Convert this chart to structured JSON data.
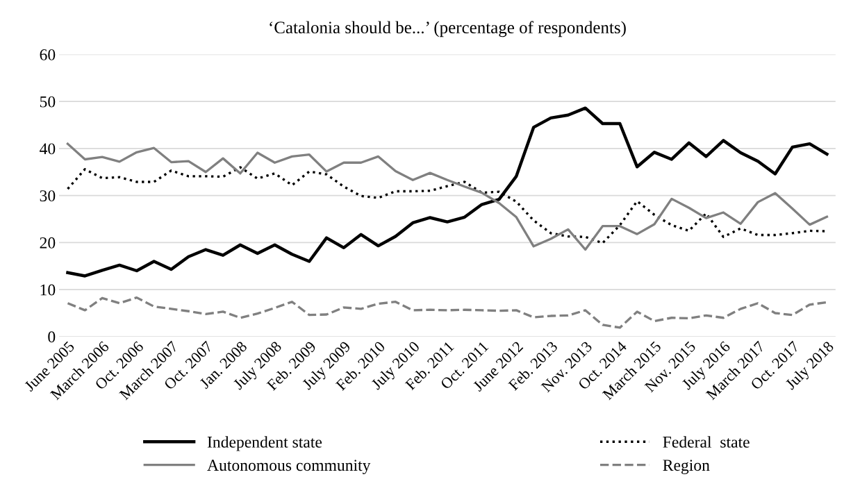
{
  "chart_data": {
    "type": "line",
    "title": "‘Catalonia should be...’ (percentage of respondents)",
    "categories": [
      "June 2005",
      null,
      "March 2006",
      null,
      "Oct. 2006",
      null,
      "March 2007",
      null,
      "Oct. 2007",
      null,
      "Jan. 2008",
      null,
      "July 2008",
      null,
      "Feb. 2009",
      null,
      "July 2009",
      null,
      "Feb. 2010",
      null,
      "July 2010",
      null,
      "Feb. 2011",
      null,
      "Oct. 2011",
      null,
      "June 2012",
      null,
      "Feb. 2013",
      null,
      "Nov. 2013",
      null,
      "Oct. 2014",
      null,
      "March 2015",
      null,
      "Nov. 2015",
      null,
      "July 2016",
      null,
      "March 2017",
      null,
      "Oct. 2017",
      null,
      "July 2018"
    ],
    "series": [
      {
        "name": "Independent state",
        "color": "#000000",
        "line_style": "solid",
        "values": [
          13.6,
          12.9,
          14.1,
          15.2,
          14.0,
          16.0,
          14.3,
          17.0,
          18.5,
          17.3,
          19.5,
          17.7,
          19.5,
          17.5,
          16.0,
          21.0,
          18.9,
          21.7,
          19.3,
          21.3,
          24.2,
          25.3,
          24.4,
          25.4,
          28.1,
          29.2,
          34.1,
          44.5,
          46.5,
          47.1,
          48.6,
          45.3,
          45.3,
          36.1,
          39.2,
          37.7,
          41.2,
          38.3,
          41.7,
          39.1,
          37.3,
          34.6,
          40.3,
          41.0,
          38.8
        ]
      },
      {
        "name": "Federal  state",
        "color": "#000000",
        "line_style": "dotted",
        "values": [
          31.4,
          35.6,
          33.7,
          33.9,
          32.9,
          32.9,
          35.3,
          34.1,
          34.1,
          34.0,
          36.0,
          33.6,
          34.7,
          32.2,
          35.1,
          34.5,
          31.9,
          29.9,
          29.5,
          30.9,
          30.9,
          31.0,
          32.0,
          32.9,
          30.6,
          30.8,
          28.7,
          24.7,
          22.0,
          21.3,
          21.2,
          19.9,
          23.7,
          28.8,
          25.9,
          23.7,
          22.5,
          26.2,
          21.2,
          23.0,
          21.6,
          21.6,
          22.0,
          22.5,
          22.4
        ]
      },
      {
        "name": "Autonomous community",
        "color": "#808080",
        "line_style": "solid",
        "values": [
          41.0,
          37.7,
          38.2,
          37.2,
          39.2,
          40.1,
          37.1,
          37.3,
          35.0,
          37.9,
          34.7,
          39.1,
          37.0,
          38.3,
          38.7,
          35.1,
          37.0,
          37.0,
          38.3,
          35.2,
          33.3,
          34.8,
          33.3,
          31.9,
          30.6,
          28.4,
          25.4,
          19.2,
          20.8,
          22.8,
          18.5,
          23.5,
          23.5,
          21.8,
          23.9,
          29.3,
          27.4,
          25.2,
          26.4,
          24.0,
          28.6,
          30.5,
          27.2,
          23.8,
          25.5
        ]
      },
      {
        "name": "Region",
        "color": "#808080",
        "line_style": "dashed",
        "values": [
          7.1,
          5.6,
          8.2,
          7.1,
          8.3,
          6.4,
          5.9,
          5.4,
          4.8,
          5.3,
          4.0,
          4.9,
          6.1,
          7.4,
          4.6,
          4.7,
          6.2,
          5.9,
          7.0,
          7.4,
          5.6,
          5.7,
          5.6,
          5.7,
          5.6,
          5.5,
          5.6,
          4.1,
          4.4,
          4.5,
          5.6,
          2.5,
          1.9,
          5.3,
          3.3,
          4.0,
          3.9,
          4.5,
          4.0,
          5.9,
          7.1,
          5.0,
          4.6,
          6.8,
          7.3
        ]
      }
    ],
    "ylim": [
      0,
      60
    ],
    "yticks": [
      0,
      10,
      20,
      30,
      40,
      50,
      60
    ],
    "grid": "y",
    "legend": "bottom",
    "marker": "none"
  }
}
